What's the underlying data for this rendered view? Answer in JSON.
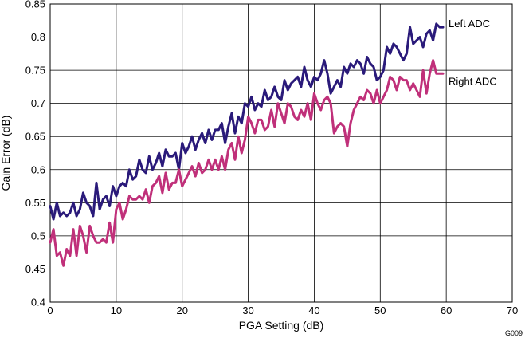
{
  "figure_id": "G009",
  "chart_data": {
    "type": "line",
    "xlabel": "PGA Setting (dB)",
    "ylabel": "Gain Error (dB)",
    "xlim": [
      0,
      70
    ],
    "ylim": [
      0.4,
      0.85
    ],
    "xticks": [
      0,
      10,
      20,
      30,
      40,
      50,
      60,
      70
    ],
    "xtick_labels": [
      "0",
      "10",
      "20",
      "30",
      "40",
      "50",
      "60",
      "70"
    ],
    "yticks": [
      0.4,
      0.45,
      0.5,
      0.55,
      0.6,
      0.65,
      0.7,
      0.75,
      0.8,
      0.85
    ],
    "ytick_labels": [
      "0.4",
      "0.45",
      "0.5",
      "0.55",
      "0.6",
      "0.65",
      "0.7",
      "0.75",
      "0.8",
      "0.85"
    ],
    "grid": true,
    "series": [
      {
        "name": "Left ADC",
        "color": "#2a1a7a",
        "x": [
          0,
          0.5,
          1,
          1.5,
          2,
          2.5,
          3,
          3.5,
          4,
          4.5,
          5,
          5.5,
          6,
          6.5,
          7,
          7.5,
          8,
          8.5,
          9,
          9.5,
          10,
          10.5,
          11,
          11.5,
          12,
          12.5,
          13,
          13.5,
          14,
          14.5,
          15,
          15.5,
          16,
          16.5,
          17,
          17.5,
          18,
          18.5,
          19,
          19.5,
          20,
          20.5,
          21,
          21.5,
          22,
          22.5,
          23,
          23.5,
          24,
          24.5,
          25,
          25.5,
          26,
          26.5,
          27,
          27.5,
          28,
          28.5,
          29,
          29.5,
          30,
          30.5,
          31,
          31.5,
          32,
          32.5,
          33,
          33.5,
          34,
          34.5,
          35,
          35.5,
          36,
          36.5,
          37,
          37.5,
          38,
          38.5,
          39,
          39.5,
          40,
          40.5,
          41,
          41.5,
          42,
          42.5,
          43,
          43.5,
          44,
          44.5,
          45,
          45.5,
          46,
          46.5,
          47,
          47.5,
          48,
          48.5,
          49,
          49.5,
          50,
          50.5,
          51,
          51.5,
          52,
          52.5,
          53,
          53.5,
          54,
          54.5,
          55,
          55.5,
          56,
          56.5,
          57,
          57.5,
          58,
          58.5,
          59,
          59.5
        ],
        "values": [
          0.545,
          0.525,
          0.55,
          0.53,
          0.535,
          0.53,
          0.535,
          0.55,
          0.53,
          0.54,
          0.565,
          0.55,
          0.545,
          0.53,
          0.58,
          0.54,
          0.555,
          0.56,
          0.545,
          0.575,
          0.56,
          0.575,
          0.58,
          0.575,
          0.6,
          0.585,
          0.59,
          0.615,
          0.6,
          0.595,
          0.62,
          0.6,
          0.61,
          0.625,
          0.605,
          0.63,
          0.62,
          0.62,
          0.625,
          0.6,
          0.64,
          0.625,
          0.635,
          0.65,
          0.63,
          0.645,
          0.655,
          0.64,
          0.66,
          0.645,
          0.66,
          0.66,
          0.67,
          0.64,
          0.665,
          0.685,
          0.655,
          0.68,
          0.67,
          0.7,
          0.695,
          0.71,
          0.69,
          0.7,
          0.695,
          0.72,
          0.705,
          0.71,
          0.725,
          0.71,
          0.705,
          0.735,
          0.72,
          0.73,
          0.735,
          0.74,
          0.725,
          0.755,
          0.735,
          0.725,
          0.74,
          0.735,
          0.745,
          0.765,
          0.745,
          0.715,
          0.725,
          0.735,
          0.725,
          0.755,
          0.745,
          0.76,
          0.755,
          0.765,
          0.76,
          0.745,
          0.77,
          0.76,
          0.755,
          0.735,
          0.74,
          0.75,
          0.785,
          0.775,
          0.79,
          0.785,
          0.775,
          0.765,
          0.775,
          0.815,
          0.79,
          0.795,
          0.8,
          0.785,
          0.805,
          0.81,
          0.795,
          0.82,
          0.815,
          0.815
        ],
        "label_text": "Left ADC"
      },
      {
        "name": "Right ADC",
        "color": "#c0307a",
        "x": [
          0,
          0.5,
          1,
          1.5,
          2,
          2.5,
          3,
          3.5,
          4,
          4.5,
          5,
          5.5,
          6,
          6.5,
          7,
          7.5,
          8,
          8.5,
          9,
          9.5,
          10,
          10.5,
          11,
          11.5,
          12,
          12.5,
          13,
          13.5,
          14,
          14.5,
          15,
          15.5,
          16,
          16.5,
          17,
          17.5,
          18,
          18.5,
          19,
          19.5,
          20,
          20.5,
          21,
          21.5,
          22,
          22.5,
          23,
          23.5,
          24,
          24.5,
          25,
          25.5,
          26,
          26.5,
          27,
          27.5,
          28,
          28.5,
          29,
          29.5,
          30,
          30.5,
          31,
          31.5,
          32,
          32.5,
          33,
          33.5,
          34,
          34.5,
          35,
          35.5,
          36,
          36.5,
          37,
          37.5,
          38,
          38.5,
          39,
          39.5,
          40,
          40.5,
          41,
          41.5,
          42,
          42.5,
          43,
          43.5,
          44,
          44.5,
          45,
          45.5,
          46,
          46.5,
          47,
          47.5,
          48,
          48.5,
          49,
          49.5,
          50,
          50.5,
          51,
          51.5,
          52,
          52.5,
          53,
          53.5,
          54,
          54.5,
          55,
          55.5,
          56,
          56.5,
          57,
          57.5,
          58,
          58.5,
          59,
          59.5
        ],
        "values": [
          0.49,
          0.51,
          0.47,
          0.475,
          0.455,
          0.48,
          0.47,
          0.51,
          0.47,
          0.515,
          0.5,
          0.475,
          0.515,
          0.5,
          0.49,
          0.49,
          0.495,
          0.49,
          0.52,
          0.49,
          0.54,
          0.55,
          0.525,
          0.54,
          0.56,
          0.555,
          0.555,
          0.56,
          0.555,
          0.57,
          0.55,
          0.575,
          0.58,
          0.59,
          0.565,
          0.595,
          0.57,
          0.58,
          0.58,
          0.6,
          0.575,
          0.585,
          0.595,
          0.605,
          0.59,
          0.61,
          0.595,
          0.6,
          0.615,
          0.6,
          0.615,
          0.6,
          0.62,
          0.6,
          0.63,
          0.64,
          0.615,
          0.65,
          0.625,
          0.645,
          0.68,
          0.67,
          0.655,
          0.675,
          0.675,
          0.66,
          0.665,
          0.69,
          0.665,
          0.7,
          0.685,
          0.67,
          0.7,
          0.695,
          0.68,
          0.675,
          0.69,
          0.68,
          0.7,
          0.675,
          0.715,
          0.7,
          0.69,
          0.705,
          0.71,
          0.7,
          0.655,
          0.665,
          0.67,
          0.665,
          0.635,
          0.67,
          0.69,
          0.7,
          0.71,
          0.705,
          0.72,
          0.715,
          0.7,
          0.72,
          0.7,
          0.71,
          0.72,
          0.74,
          0.735,
          0.72,
          0.74,
          0.735,
          0.735,
          0.72,
          0.73,
          0.72,
          0.71,
          0.75,
          0.715,
          0.745,
          0.765,
          0.745,
          0.745,
          0.745
        ],
        "label_text": "Right ADC"
      }
    ]
  }
}
